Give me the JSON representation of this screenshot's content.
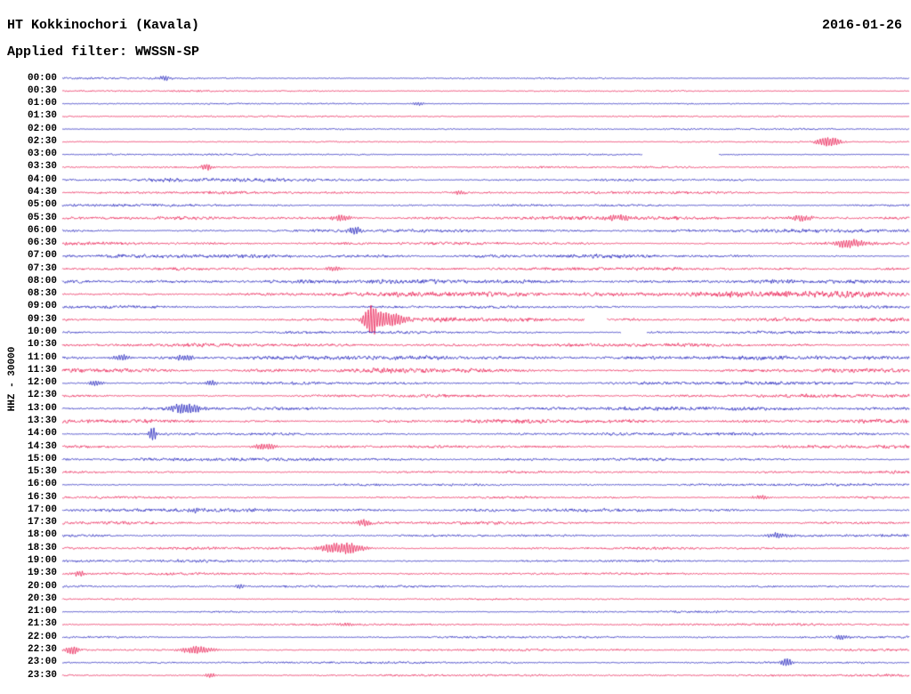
{
  "chart_data": {
    "type": "line",
    "subtype": "helicorder-seismogram",
    "title": "HT Kokkinochori (Kavala)",
    "date": "2016-01-26",
    "filter_label": "Applied filter: WWSSN-SP",
    "stream_label": "HHZ - 30000",
    "minutes_per_row": 30,
    "legend_position": "none",
    "grid": false,
    "colors": {
      "even": "#1414b8",
      "odd": "#e8114a"
    },
    "rows": [
      {
        "t": "00:00",
        "n": 1.0,
        "e": [
          [
            0.12,
            3,
            6
          ]
        ]
      },
      {
        "t": "00:30",
        "n": 0.9
      },
      {
        "t": "01:00",
        "n": 0.9,
        "e": [
          [
            0.42,
            2.5,
            5
          ]
        ]
      },
      {
        "t": "01:30",
        "n": 0.9
      },
      {
        "t": "02:00",
        "n": 0.9
      },
      {
        "t": "02:30",
        "n": 0.9,
        "e": [
          [
            0.905,
            6,
            10
          ]
        ]
      },
      {
        "t": "03:00",
        "n": 0.9,
        "g": [
          [
            0.685,
            0.775
          ]
        ]
      },
      {
        "t": "03:30",
        "n": 1.0,
        "e": [
          [
            0.17,
            4,
            5
          ]
        ]
      },
      {
        "t": "04:00",
        "n": 1.7,
        "p": [
          [
            0.1,
            0.45,
            1.4
          ]
        ]
      },
      {
        "t": "04:30",
        "n": 1.4,
        "e": [
          [
            0.47,
            2.5,
            6
          ]
        ]
      },
      {
        "t": "05:00",
        "n": 1.7
      },
      {
        "t": "05:30",
        "n": 2.0,
        "e": [
          [
            0.33,
            4,
            8
          ],
          [
            0.655,
            3,
            10
          ],
          [
            0.875,
            3.5,
            10
          ]
        ]
      },
      {
        "t": "06:00",
        "n": 1.9,
        "e": [
          [
            0.345,
            4,
            7
          ]
        ]
      },
      {
        "t": "06:30",
        "n": 1.9,
        "e": [
          [
            0.93,
            5,
            14
          ]
        ]
      },
      {
        "t": "07:00",
        "n": 2.0,
        "p": [
          [
            0.3,
            0.7,
            1.3
          ]
        ]
      },
      {
        "t": "07:30",
        "n": 1.8,
        "e": [
          [
            0.32,
            3,
            6
          ]
        ]
      },
      {
        "t": "08:00",
        "n": 2.3
      },
      {
        "t": "08:30",
        "n": 2.3,
        "p": [
          [
            0.38,
            1.0,
            1.5
          ]
        ]
      },
      {
        "t": "09:00",
        "n": 2.0
      },
      {
        "t": "09:30",
        "n": 2.0,
        "e": [
          [
            0.365,
            16,
            6
          ],
          [
            0.385,
            9,
            14
          ]
        ],
        "p": [
          [
            0.42,
            0.68,
            1.7
          ]
        ],
        "g": [
          [
            0.617,
            0.643
          ]
        ]
      },
      {
        "t": "10:00",
        "n": 2.0,
        "g": [
          [
            0.66,
            0.69
          ]
        ]
      },
      {
        "t": "10:30",
        "n": 1.9
      },
      {
        "t": "11:00",
        "n": 2.3,
        "e": [
          [
            0.07,
            3.5,
            8
          ],
          [
            0.145,
            3.5,
            8
          ]
        ]
      },
      {
        "t": "11:30",
        "n": 2.5,
        "p": [
          [
            0.0,
            0.5,
            1.4
          ]
        ]
      },
      {
        "t": "12:00",
        "n": 2.1,
        "e": [
          [
            0.04,
            3.5,
            6
          ],
          [
            0.175,
            3,
            6
          ]
        ]
      },
      {
        "t": "12:30",
        "n": 1.9
      },
      {
        "t": "13:00",
        "n": 2.3,
        "e": [
          [
            0.145,
            6,
            12
          ]
        ]
      },
      {
        "t": "13:30",
        "n": 2.7
      },
      {
        "t": "14:00",
        "n": 1.9,
        "e": [
          [
            0.107,
            9,
            3
          ]
        ]
      },
      {
        "t": "14:30",
        "n": 2.0,
        "e": [
          [
            0.24,
            4,
            10
          ]
        ]
      },
      {
        "t": "15:00",
        "n": 1.7
      },
      {
        "t": "15:30",
        "n": 1.6
      },
      {
        "t": "16:00",
        "n": 1.5
      },
      {
        "t": "16:30",
        "n": 1.6,
        "e": [
          [
            0.825,
            2.5,
            8
          ]
        ]
      },
      {
        "t": "17:00",
        "n": 1.8,
        "e": [
          [
            0.155,
            2.5,
            6
          ]
        ]
      },
      {
        "t": "17:30",
        "n": 1.7,
        "e": [
          [
            0.355,
            4,
            6
          ]
        ]
      },
      {
        "t": "18:00",
        "n": 1.6,
        "e": [
          [
            0.845,
            3,
            8
          ]
        ]
      },
      {
        "t": "18:30",
        "n": 1.8,
        "e": [
          [
            0.33,
            7,
            18
          ]
        ]
      },
      {
        "t": "19:00",
        "n": 1.6
      },
      {
        "t": "19:30",
        "n": 1.3,
        "e": [
          [
            0.02,
            3,
            5
          ]
        ]
      },
      {
        "t": "20:00",
        "n": 1.3,
        "e": [
          [
            0.21,
            2.5,
            5
          ]
        ]
      },
      {
        "t": "20:30",
        "n": 1.2
      },
      {
        "t": "21:00",
        "n": 1.2
      },
      {
        "t": "21:30",
        "n": 1.2,
        "e": [
          [
            0.335,
            3,
            5
          ]
        ]
      },
      {
        "t": "22:00",
        "n": 1.4,
        "e": [
          [
            0.92,
            2.5,
            6
          ]
        ]
      },
      {
        "t": "22:30",
        "n": 1.3,
        "e": [
          [
            0.012,
            5,
            6
          ],
          [
            0.16,
            4.5,
            14
          ]
        ]
      },
      {
        "t": "23:00",
        "n": 1.2,
        "e": [
          [
            0.855,
            6,
            4
          ]
        ]
      },
      {
        "t": "23:30",
        "n": 1.2,
        "e": [
          [
            0.175,
            3,
            5
          ]
        ]
      }
    ]
  }
}
